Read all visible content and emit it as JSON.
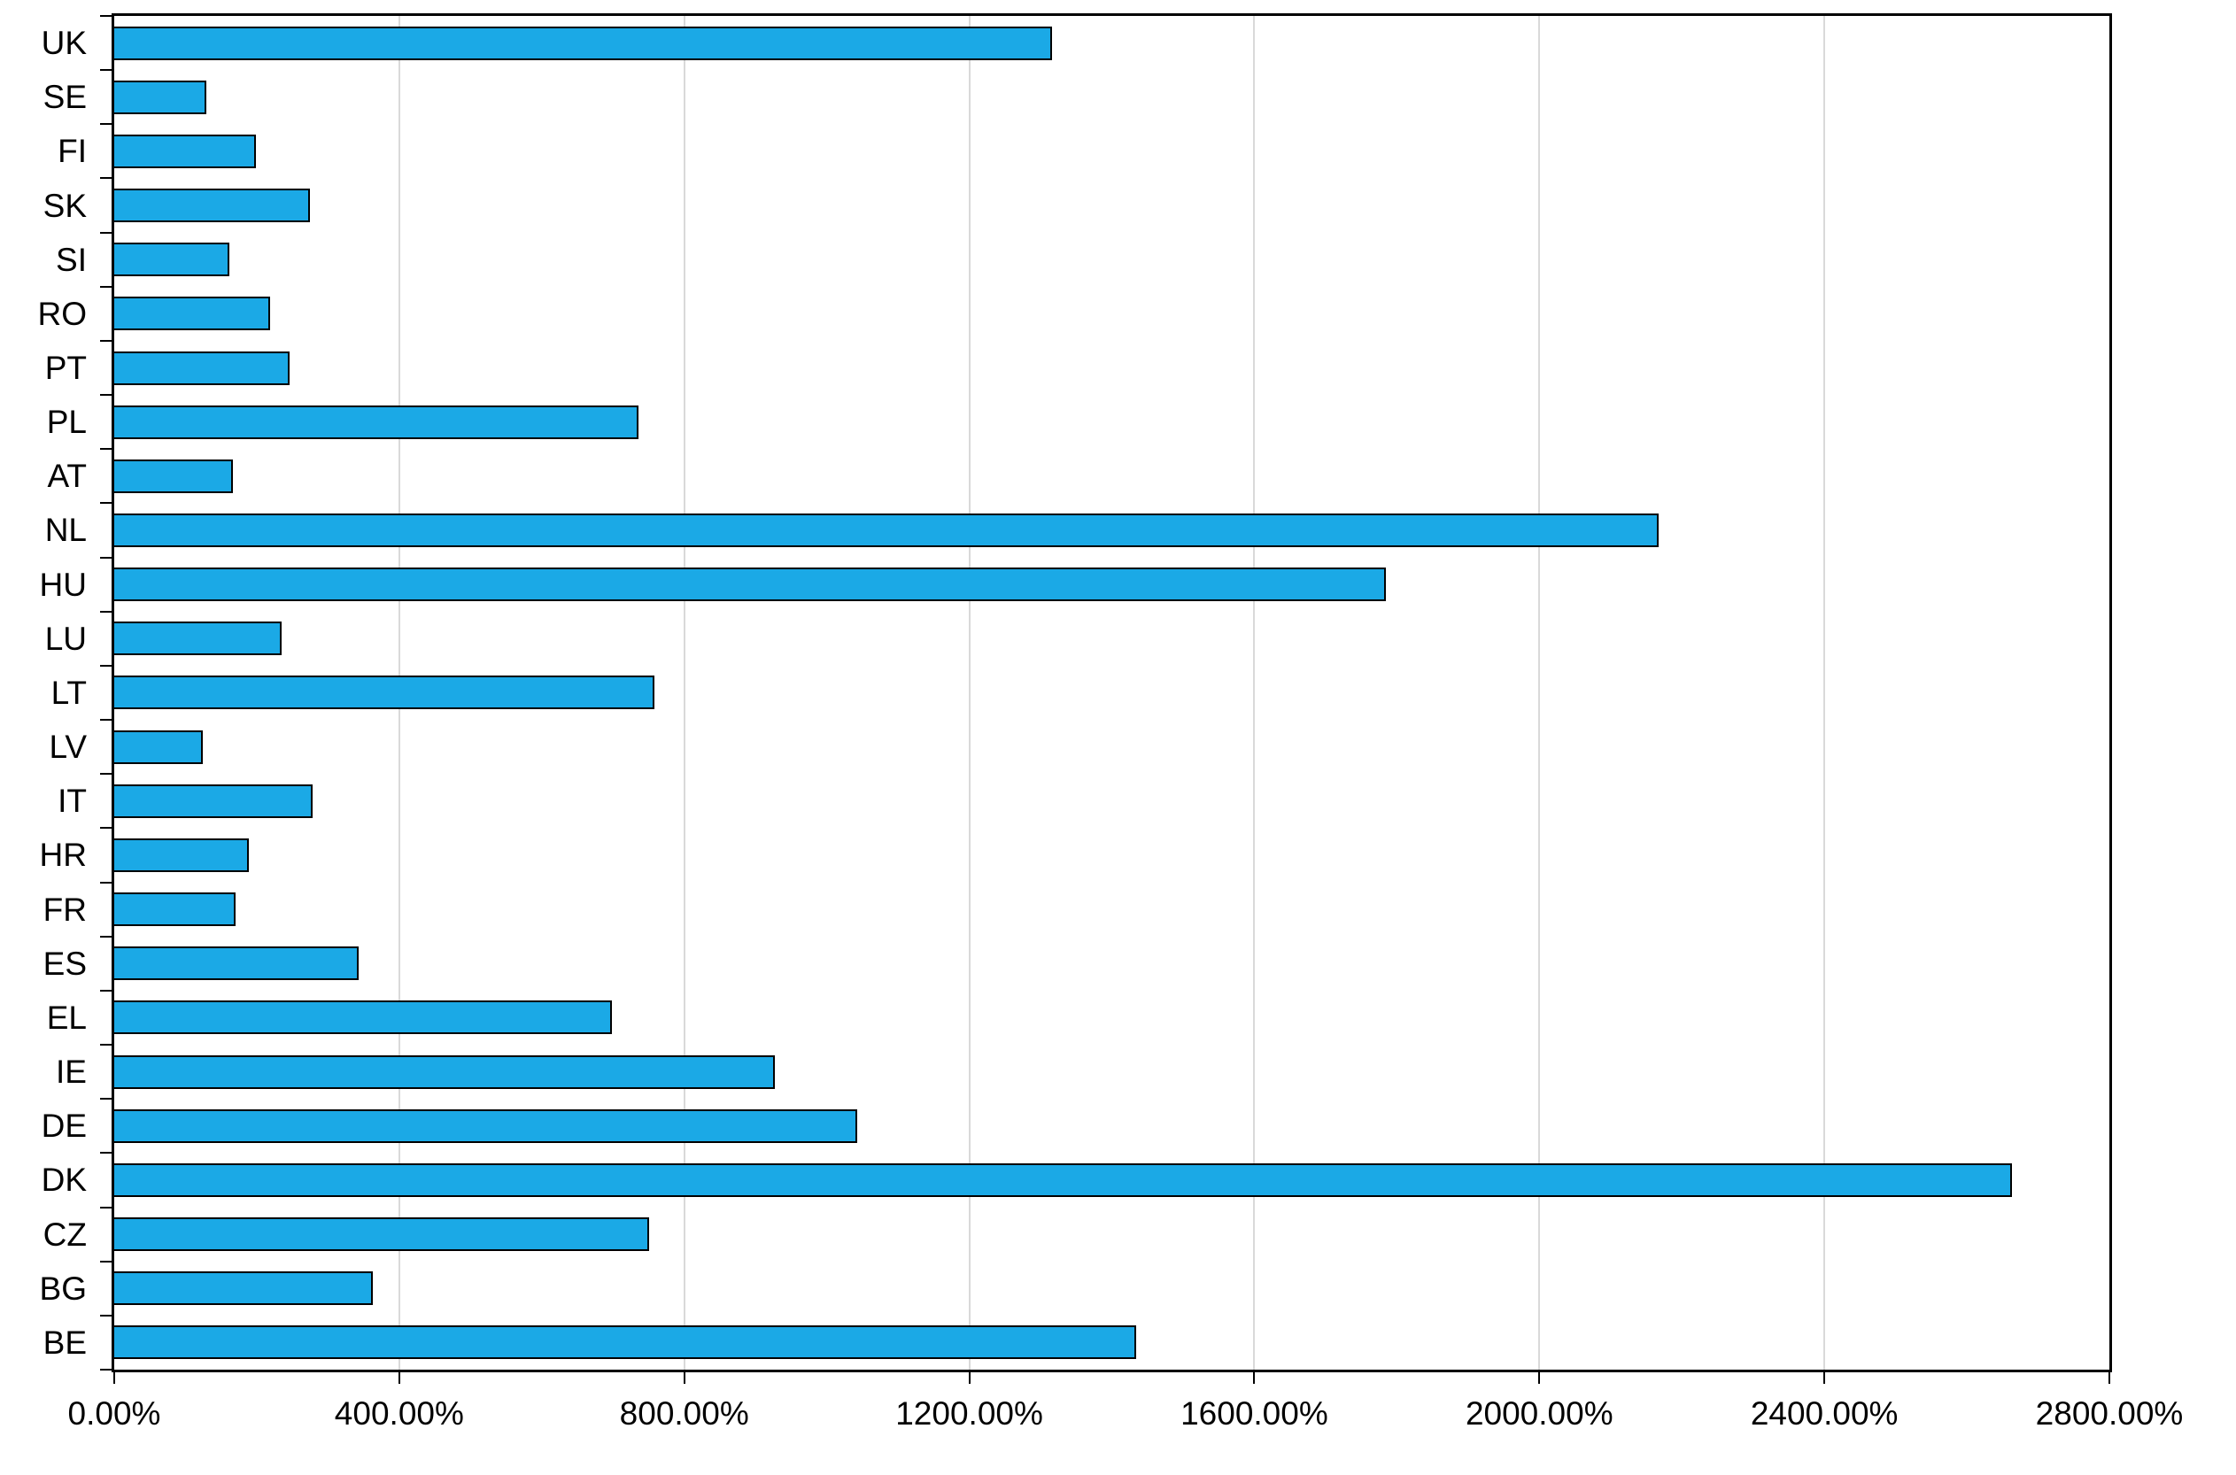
{
  "chart_data": {
    "type": "bar",
    "orientation": "horizontal",
    "title": "",
    "xlabel": "",
    "ylabel": "",
    "categories": [
      "UK",
      "SE",
      "FI",
      "SK",
      "SI",
      "RO",
      "PT",
      "PL",
      "AT",
      "NL",
      "HU",
      "LU",
      "LT",
      "LV",
      "IT",
      "HR",
      "FR",
      "ES",
      "EL",
      "IE",
      "DE",
      "DK",
      "CZ",
      "BG",
      "BE"
    ],
    "values": [
      1314,
      127,
      196,
      272,
      159,
      216,
      244,
      733,
      164,
      2165,
      1782,
      232,
      756,
      122,
      276,
      187,
      168,
      340,
      696,
      925,
      1040,
      2661,
      748,
      361,
      1432
    ],
    "unit": "%",
    "xlim": [
      0,
      2800
    ],
    "xticks": [
      0,
      400,
      800,
      1200,
      1600,
      2000,
      2400,
      2800
    ],
    "xtick_labels": [
      "0.00%",
      "400.00%",
      "800.00%",
      "1200.00%",
      "1600.00%",
      "2000.00%",
      "2400.00%",
      "2800.00%"
    ],
    "grid": true,
    "legend": false,
    "colors": {
      "bar_fill": "#1BA9E6",
      "bar_border": "#000000",
      "gridline": "#D9D9D9",
      "axis": "#000000",
      "background": "#FFFFFF"
    }
  }
}
